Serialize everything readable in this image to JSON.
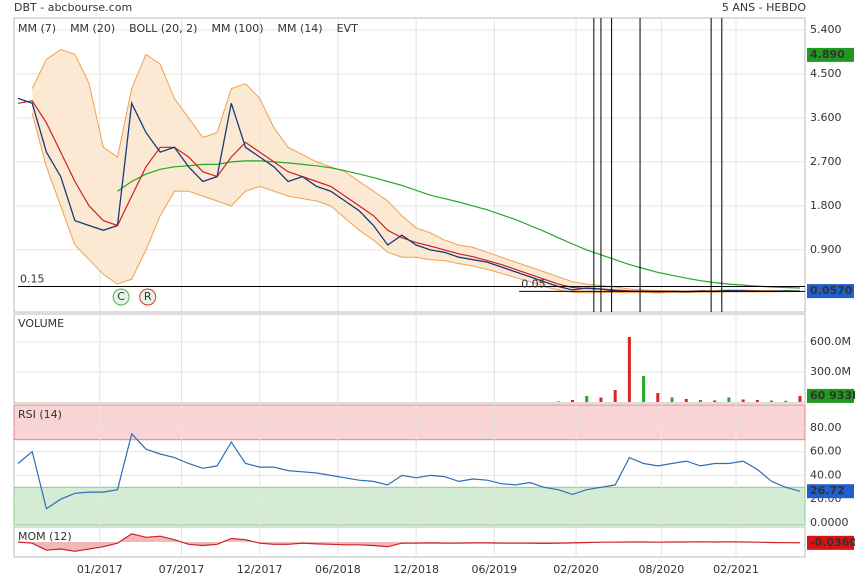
{
  "header": {
    "title": "DBT - abcbourse.com",
    "period": "5 ANS - HEBDO"
  },
  "chart_data": [
    {
      "type": "price",
      "legend": [
        {
          "name": "MM (7)",
          "color": "#2a2ad0"
        },
        {
          "name": "MM (20)",
          "color": "#cc2222"
        },
        {
          "name": "BOLL (20, 2)",
          "color": "#f0a050"
        },
        {
          "name": "MM (100)",
          "color": "#22aa22"
        },
        {
          "name": "MM (14)",
          "color": "#000000"
        },
        {
          "name": "EVT",
          "color": "#000000"
        }
      ],
      "x": [
        0,
        4,
        8,
        12,
        16,
        20,
        24,
        28,
        32,
        36,
        40,
        44,
        48,
        52,
        56,
        60,
        64,
        68,
        72,
        76,
        80,
        84,
        88,
        92,
        96,
        100,
        104,
        108,
        112,
        116,
        120,
        124,
        128,
        132,
        136,
        140,
        144,
        148,
        152,
        156,
        160,
        164,
        168,
        172,
        176,
        180,
        184,
        188,
        192,
        196,
        200,
        204,
        208,
        212,
        216,
        220
      ],
      "xlim": [
        0,
        220
      ],
      "xticks": [
        {
          "value": 23,
          "label": "01/2017"
        },
        {
          "value": 46,
          "label": "07/2017"
        },
        {
          "value": 68,
          "label": "12/2017"
        },
        {
          "value": 90,
          "label": "06/2018"
        },
        {
          "value": 112,
          "label": "12/2018"
        },
        {
          "value": 134,
          "label": "06/2019"
        },
        {
          "value": 157,
          "label": "02/2020"
        },
        {
          "value": 181,
          "label": "08/2020"
        },
        {
          "value": 202,
          "label": "02/2021"
        }
      ],
      "ylim": [
        -0.33,
        5.645
      ],
      "yticks": [
        {
          "value": 0.9,
          "label": "0.900"
        },
        {
          "value": 1.8,
          "label": "1.800"
        },
        {
          "value": 2.7,
          "label": "2.700"
        },
        {
          "value": 3.6,
          "label": "3.600"
        },
        {
          "value": 4.5,
          "label": "4.500"
        },
        {
          "value": 5.4,
          "label": "5.400"
        }
      ],
      "close": {
        "color": "#1a3a7a",
        "values": [
          4.0,
          3.9,
          2.9,
          2.4,
          1.5,
          1.4,
          1.3,
          1.4,
          3.9,
          3.3,
          2.9,
          3.0,
          2.6,
          2.3,
          2.4,
          3.9,
          3.0,
          2.8,
          2.6,
          2.3,
          2.4,
          2.2,
          2.1,
          1.9,
          1.7,
          1.4,
          1.0,
          1.2,
          1.0,
          0.9,
          0.85,
          0.75,
          0.7,
          0.65,
          0.55,
          0.45,
          0.35,
          0.25,
          0.15,
          0.08,
          0.12,
          0.1,
          0.06,
          0.05,
          0.05,
          0.04,
          0.05,
          0.04,
          0.06,
          0.05,
          0.07,
          0.06,
          0.05,
          0.05,
          0.06,
          0.057
        ]
      },
      "mm20": [
        3.9,
        3.95,
        3.5,
        2.9,
        2.3,
        1.8,
        1.5,
        1.4,
        2.0,
        2.6,
        3.0,
        3.0,
        2.8,
        2.5,
        2.4,
        2.8,
        3.1,
        2.9,
        2.7,
        2.5,
        2.4,
        2.3,
        2.2,
        2.0,
        1.8,
        1.6,
        1.3,
        1.15,
        1.05,
        0.98,
        0.9,
        0.82,
        0.76,
        0.68,
        0.6,
        0.5,
        0.4,
        0.3,
        0.2,
        0.13,
        0.11,
        0.1,
        0.08,
        0.06,
        0.055,
        0.05,
        0.048,
        0.047,
        0.05,
        0.052,
        0.058,
        0.06,
        0.058,
        0.055,
        0.056,
        0.057
      ],
      "mm100": [
        null,
        null,
        null,
        null,
        null,
        null,
        null,
        2.1,
        2.3,
        2.45,
        2.55,
        2.6,
        2.62,
        2.65,
        2.65,
        2.7,
        2.72,
        2.72,
        2.7,
        2.68,
        2.65,
        2.62,
        2.58,
        2.52,
        2.45,
        2.38,
        2.3,
        2.22,
        2.12,
        2.02,
        1.95,
        1.88,
        1.8,
        1.72,
        1.62,
        1.52,
        1.4,
        1.28,
        1.15,
        1.02,
        0.9,
        0.8,
        0.7,
        0.6,
        0.52,
        0.44,
        0.38,
        0.32,
        0.27,
        0.23,
        0.2,
        0.18,
        0.16,
        0.14,
        0.13,
        0.12
      ],
      "boll_upper": [
        null,
        4.2,
        4.8,
        5.0,
        4.9,
        4.3,
        3.0,
        2.8,
        4.2,
        4.9,
        4.7,
        4.0,
        3.6,
        3.2,
        3.3,
        4.2,
        4.3,
        4.0,
        3.4,
        3.0,
        2.85,
        2.7,
        2.6,
        2.5,
        2.3,
        2.1,
        1.9,
        1.6,
        1.35,
        1.25,
        1.1,
        1.0,
        0.95,
        0.85,
        0.75,
        0.65,
        0.55,
        0.45,
        0.35,
        0.25,
        0.2,
        0.17,
        0.14,
        0.1,
        0.08,
        0.07,
        0.065,
        0.06,
        0.065,
        0.07,
        0.08,
        0.08,
        0.07,
        0.068,
        0.066,
        0.065
      ],
      "boll_lower": [
        null,
        3.7,
        2.6,
        1.8,
        1.0,
        0.7,
        0.4,
        0.2,
        0.3,
        0.9,
        1.6,
        2.1,
        2.1,
        2.0,
        1.9,
        1.8,
        2.1,
        2.2,
        2.1,
        2.0,
        1.95,
        1.9,
        1.8,
        1.55,
        1.3,
        1.1,
        0.85,
        0.75,
        0.75,
        0.7,
        0.68,
        0.62,
        0.57,
        0.5,
        0.42,
        0.33,
        0.25,
        0.15,
        0.08,
        0.03,
        0.02,
        0.03,
        0.03,
        0.02,
        0.03,
        0.02,
        0.03,
        0.03,
        0.035,
        0.035,
        0.04,
        0.04,
        0.04,
        0.045,
        0.046,
        0.049
      ],
      "events": [
        162,
        164,
        167,
        175,
        195,
        198
      ],
      "signals": [
        {
          "label": "C",
          "x": 29,
          "color": "#44bb44"
        },
        {
          "label": "R",
          "x": 36.5,
          "color": "#dd3333"
        }
      ],
      "levels": [
        {
          "value": 0.15,
          "label": "0.15",
          "from": 0
        },
        {
          "value": 0.05,
          "label": "0.05",
          "from": 141
        }
      ],
      "high": {
        "value": 4.89,
        "label": "4.890",
        "color": "#1f9a1f"
      },
      "last": {
        "value": 0.057,
        "label": "0.0570",
        "color": "#1f5fd0"
      }
    },
    {
      "type": "bar",
      "title": "VOLUME",
      "ylim": [
        0,
        840
      ],
      "yticks": [
        {
          "value": 300,
          "label": "300.0M"
        },
        {
          "value": 600,
          "label": "600.0M"
        }
      ],
      "colors": {
        "up": "#22aa22",
        "down": "#dd2222"
      },
      "values": [
        0.5,
        0.5,
        0.5,
        0.5,
        0.5,
        0.5,
        0.5,
        0.5,
        0.5,
        0.5,
        0.5,
        0.5,
        0.5,
        0.5,
        0.5,
        0.5,
        0.5,
        0.5,
        0.5,
        0.5,
        0.5,
        0.5,
        0.5,
        0.5,
        0.5,
        0.5,
        0.5,
        0.5,
        0.5,
        0.5,
        0.5,
        0.5,
        0.5,
        0.5,
        0.5,
        0.5,
        0.5,
        0.5,
        5,
        20,
        60,
        45,
        120,
        650,
        260,
        90,
        45,
        30,
        20,
        15,
        45,
        25,
        20,
        15,
        12,
        60.933
      ],
      "last": {
        "value": 60.933,
        "label": "60 933K",
        "color": "#1f9a1f"
      }
    },
    {
      "type": "line",
      "title": "RSI (14)",
      "color": "#2a6fb8",
      "ylim": [
        0,
        100
      ],
      "yticks": [
        {
          "value": 0,
          "label": "0.0000"
        },
        {
          "value": 20,
          "label": "20.00"
        },
        {
          "value": 40,
          "label": "40.00"
        },
        {
          "value": 60,
          "label": "60.00"
        },
        {
          "value": 80,
          "label": "80.00"
        }
      ],
      "upper_band": 70,
      "lower_band": 30,
      "values": [
        50,
        60,
        12,
        20,
        25,
        26,
        26,
        28,
        75,
        62,
        58,
        55,
        50,
        46,
        48,
        68,
        50,
        47,
        47,
        44,
        43,
        42,
        40,
        38,
        36,
        35,
        32,
        40,
        38,
        40,
        39,
        35,
        37,
        36,
        33,
        32,
        34,
        30,
        28,
        24,
        28,
        30,
        32,
        55,
        50,
        48,
        50,
        52,
        48,
        50,
        50,
        52,
        45,
        35,
        30,
        26.72
      ],
      "last": {
        "value": 26.72,
        "label": "26.72",
        "color": "#1f5fd0"
      }
    },
    {
      "type": "area",
      "title": "MOM (12)",
      "color": "#cc2222",
      "ylim": [
        -0.6,
        0.6
      ],
      "values": [
        0,
        -0.05,
        -0.35,
        -0.3,
        -0.4,
        -0.3,
        -0.2,
        -0.05,
        0.35,
        0.2,
        0.25,
        0.1,
        -0.1,
        -0.15,
        -0.1,
        0.15,
        0.1,
        -0.05,
        -0.1,
        -0.1,
        -0.05,
        -0.08,
        -0.1,
        -0.12,
        -0.12,
        -0.15,
        -0.2,
        -0.05,
        -0.05,
        -0.04,
        -0.05,
        -0.05,
        -0.04,
        -0.04,
        -0.05,
        -0.05,
        -0.05,
        -0.06,
        -0.05,
        -0.04,
        -0.02,
        -0.01,
        -0.01,
        0.0,
        0.0,
        -0.01,
        0.0,
        0.0,
        0.01,
        0.0,
        0.01,
        0.0,
        -0.01,
        -0.02,
        -0.03,
        -0.036
      ],
      "last": {
        "value": -0.036,
        "label": "-0.0360",
        "color": "#dd1111"
      }
    }
  ]
}
